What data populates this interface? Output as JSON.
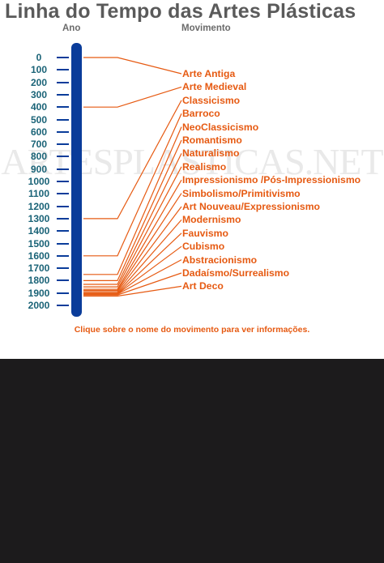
{
  "title": "Linha do Tempo das Artes Plásticas",
  "header": {
    "year_label": "Ano",
    "movement_label": "Movimento"
  },
  "watermark": "ARTESPLASTICAS.NET",
  "years": [
    "0",
    "100",
    "200",
    "300",
    "400",
    "500",
    "600",
    "700",
    "800",
    "900",
    "1000",
    "1100",
    "1200",
    "1300",
    "1400",
    "1500",
    "1600",
    "1700",
    "1800",
    "1900",
    "2000"
  ],
  "movements": [
    {
      "label": "Arte Antiga",
      "year": 0
    },
    {
      "label": "Arte Medieval",
      "year": 400
    },
    {
      "label": "Classicismo",
      "year": 1300
    },
    {
      "label": "Barroco",
      "year": 1600
    },
    {
      "label": "NeoClassicismo",
      "year": 1750
    },
    {
      "label": "Romantismo",
      "year": 1800
    },
    {
      "label": "Naturalismo",
      "year": 1830
    },
    {
      "label": "Realismo",
      "year": 1850
    },
    {
      "label": "Impressionismo /Pós-Impressionismo",
      "year": 1870
    },
    {
      "label": "Simbolismo/Primitivismo",
      "year": 1880
    },
    {
      "label": "Art Nouveau/Expressionismo",
      "year": 1890
    },
    {
      "label": "Modernismo",
      "year": 1900
    },
    {
      "label": "Fauvismo",
      "year": 1905
    },
    {
      "label": "Cubismo",
      "year": 1907
    },
    {
      "label": "Abstracionismo",
      "year": 1910
    },
    {
      "label": "Dadaísmo/Surrealismo",
      "year": 1916
    },
    {
      "label": "Art Deco",
      "year": 1925
    }
  ],
  "instruction": "Clique sobre o nome do movimento para ver informações.",
  "colors": {
    "bar": "#0a3c9a",
    "line": "#e65a12",
    "year_text": "#1a6377"
  }
}
